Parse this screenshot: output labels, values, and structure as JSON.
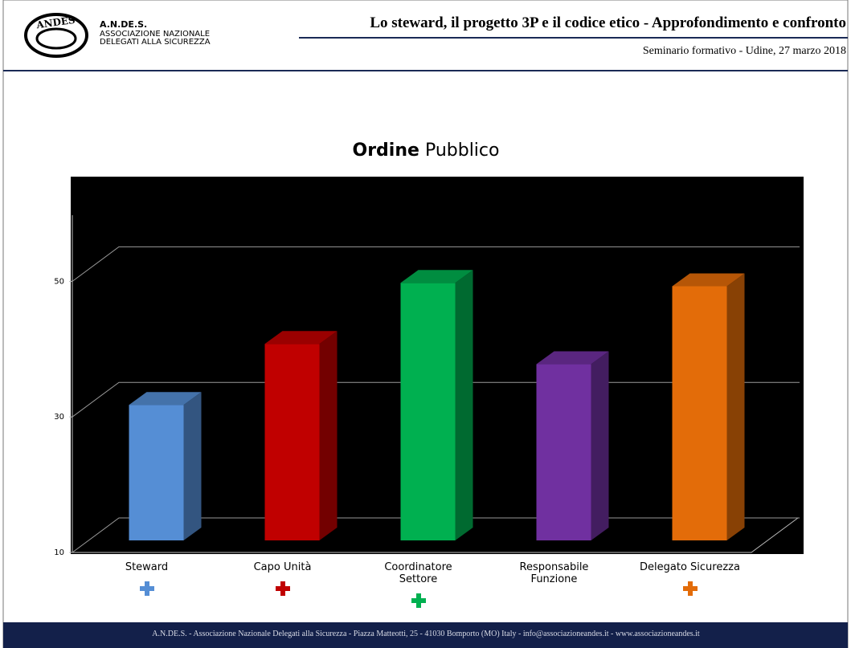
{
  "header": {
    "logo": "ANDES",
    "org_lines": [
      "A.N.DE.S.",
      "ASSOCIAZIONE NAZIONALE",
      "DELEGATI ALLA SICUREZZA"
    ],
    "title": "Lo steward, il progetto 3P e il codice etico - Approfondimento e confronto",
    "subtitle": "Seminario formativo - Udine, 27 marzo 2018"
  },
  "chart_data": {
    "type": "bar3d",
    "title_bold": "Ordine",
    "title": "Pubblico",
    "categories": [
      "Steward",
      "Capo Unità",
      "Coordinatore\nSettore",
      "Responsabile\nFunzione",
      "Delegato Sicurezza"
    ],
    "values": [
      30,
      39,
      48,
      36,
      47.5
    ],
    "colors": [
      "#558ed5",
      "#c00000",
      "#00b050",
      "#7030a0",
      "#e36c09"
    ],
    "ylim": [
      10,
      60
    ],
    "yticks": [
      10,
      30,
      50
    ],
    "grid": true
  },
  "footer": "A.N.DE.S. - Associazione Nazionale Delegati alla Sicurezza - Piazza Matteotti, 25 - 41030 Bomporto (MO) Italy - info@associazioneandes.it - www.associazioneandes.it"
}
